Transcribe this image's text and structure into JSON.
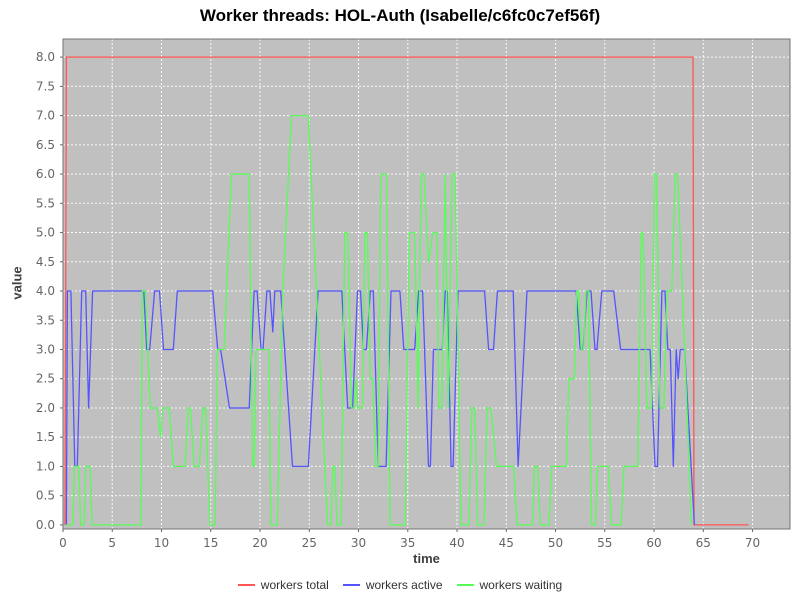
{
  "chart_data": {
    "type": "line",
    "title": "Worker threads: HOL-Auth (Isabelle/c6fc0c7ef56f)",
    "xlabel": "time",
    "ylabel": "value",
    "xlim": [
      0,
      73.8
    ],
    "ylim": [
      -0.07,
      8.31
    ],
    "grid": true,
    "legend_position": "bottom",
    "plot_bg_color": "#c0c0c0",
    "grid_color": "#ffffff",
    "border_color": "#737373",
    "tick_label_color": "#666666",
    "xticks": [
      "0",
      "5",
      "10",
      "15",
      "20",
      "25",
      "30",
      "35",
      "40",
      "45",
      "50",
      "55",
      "60",
      "65",
      "70"
    ],
    "xtick_values": [
      0,
      5,
      10,
      15,
      20,
      25,
      30,
      35,
      40,
      45,
      50,
      55,
      60,
      65,
      70
    ],
    "yticks": [
      "0.0",
      "0.5",
      "1.0",
      "1.5",
      "2.0",
      "2.5",
      "3.0",
      "3.5",
      "4.0",
      "4.5",
      "5.0",
      "5.5",
      "6.0",
      "6.5",
      "7.0",
      "7.5",
      "8.0"
    ],
    "ytick_values": [
      0,
      0.5,
      1,
      1.5,
      2,
      2.5,
      3,
      3.5,
      4,
      4.5,
      5,
      5.5,
      6,
      6.5,
      7,
      7.5,
      8
    ],
    "series": [
      {
        "name": "workers total",
        "color": "#ff5555",
        "points": [
          [
            0.2,
            0
          ],
          [
            0.35,
            8
          ],
          [
            63.95,
            8
          ],
          [
            64.05,
            0
          ],
          [
            69.6,
            0
          ]
        ]
      },
      {
        "name": "workers active",
        "color": "#5555ff",
        "points": [
          [
            0.35,
            0
          ],
          [
            0.45,
            4
          ],
          [
            0.8,
            4
          ],
          [
            1.2,
            1
          ],
          [
            1.45,
            1
          ],
          [
            1.9,
            4
          ],
          [
            2.3,
            4
          ],
          [
            2.6,
            2
          ],
          [
            3.0,
            4
          ],
          [
            8.2,
            4
          ],
          [
            8.5,
            3
          ],
          [
            8.8,
            3
          ],
          [
            9.3,
            4
          ],
          [
            9.8,
            4
          ],
          [
            10.2,
            3
          ],
          [
            11.2,
            3
          ],
          [
            11.6,
            4
          ],
          [
            15.2,
            4
          ],
          [
            15.7,
            3
          ],
          [
            16.0,
            3
          ],
          [
            16.9,
            2
          ],
          [
            18.9,
            2
          ],
          [
            19.4,
            4
          ],
          [
            19.7,
            4
          ],
          [
            20.1,
            3
          ],
          [
            20.3,
            3
          ],
          [
            20.7,
            4
          ],
          [
            21.0,
            4
          ],
          [
            21.3,
            3.3
          ],
          [
            21.5,
            4
          ],
          [
            22.1,
            4
          ],
          [
            23.3,
            1
          ],
          [
            24.9,
            1
          ],
          [
            25.9,
            4
          ],
          [
            28.3,
            4
          ],
          [
            28.9,
            2
          ],
          [
            29.4,
            2
          ],
          [
            29.9,
            4
          ],
          [
            30.2,
            4
          ],
          [
            30.5,
            3
          ],
          [
            30.8,
            3
          ],
          [
            31.2,
            4
          ],
          [
            31.5,
            4
          ],
          [
            32.0,
            1
          ],
          [
            32.8,
            1
          ],
          [
            33.3,
            4
          ],
          [
            34.2,
            4
          ],
          [
            34.6,
            3
          ],
          [
            35.7,
            3
          ],
          [
            36.1,
            4
          ],
          [
            36.5,
            4
          ],
          [
            37.1,
            1
          ],
          [
            37.3,
            1
          ],
          [
            37.6,
            3
          ],
          [
            38.5,
            3
          ],
          [
            38.8,
            4
          ],
          [
            39.0,
            4
          ],
          [
            39.4,
            1
          ],
          [
            39.6,
            1
          ],
          [
            40.1,
            4
          ],
          [
            42.8,
            4
          ],
          [
            43.2,
            3
          ],
          [
            43.7,
            3
          ],
          [
            44.1,
            4
          ],
          [
            45.7,
            4
          ],
          [
            46.2,
            1
          ],
          [
            47.1,
            4
          ],
          [
            52.1,
            4
          ],
          [
            52.5,
            3
          ],
          [
            52.8,
            3
          ],
          [
            53.2,
            4
          ],
          [
            53.6,
            4
          ],
          [
            54.0,
            3
          ],
          [
            54.2,
            3
          ],
          [
            54.7,
            4
          ],
          [
            55.9,
            4
          ],
          [
            56.6,
            3
          ],
          [
            59.6,
            3
          ],
          [
            60.1,
            1
          ],
          [
            60.35,
            1
          ],
          [
            60.8,
            4
          ],
          [
            61.1,
            4
          ],
          [
            61.4,
            3
          ],
          [
            61.65,
            3
          ],
          [
            61.95,
            1
          ],
          [
            62.25,
            3
          ],
          [
            62.45,
            2.5
          ],
          [
            62.65,
            3
          ],
          [
            63.1,
            3
          ],
          [
            64.1,
            0
          ]
        ]
      },
      {
        "name": "workers waiting",
        "color": "#55ff55",
        "points": [
          [
            0.35,
            0
          ],
          [
            1.0,
            0
          ],
          [
            1.15,
            1
          ],
          [
            1.6,
            1
          ],
          [
            1.8,
            0
          ],
          [
            2.15,
            0
          ],
          [
            2.3,
            1
          ],
          [
            2.75,
            1
          ],
          [
            2.95,
            0
          ],
          [
            7.9,
            0
          ],
          [
            8.05,
            4
          ],
          [
            8.35,
            4
          ],
          [
            8.85,
            2
          ],
          [
            9.55,
            2
          ],
          [
            9.9,
            1.5
          ],
          [
            10.15,
            2
          ],
          [
            10.8,
            2
          ],
          [
            11.2,
            1
          ],
          [
            12.4,
            1
          ],
          [
            12.7,
            2
          ],
          [
            12.95,
            2
          ],
          [
            13.3,
            1
          ],
          [
            13.85,
            1
          ],
          [
            14.2,
            2
          ],
          [
            14.5,
            2
          ],
          [
            14.9,
            0
          ],
          [
            15.45,
            0
          ],
          [
            15.65,
            3
          ],
          [
            16.35,
            3
          ],
          [
            17.1,
            6
          ],
          [
            18.9,
            6
          ],
          [
            19.25,
            1
          ],
          [
            19.4,
            1
          ],
          [
            19.6,
            3
          ],
          [
            20.9,
            3
          ],
          [
            21.1,
            0
          ],
          [
            21.75,
            0
          ],
          [
            22.3,
            4
          ],
          [
            23.2,
            7
          ],
          [
            24.9,
            7
          ],
          [
            26.85,
            0
          ],
          [
            27.2,
            0
          ],
          [
            27.4,
            1
          ],
          [
            27.6,
            1
          ],
          [
            27.8,
            0
          ],
          [
            28.25,
            0
          ],
          [
            28.6,
            5
          ],
          [
            28.9,
            5
          ],
          [
            29.3,
            2
          ],
          [
            29.55,
            2
          ],
          [
            29.75,
            2.5
          ],
          [
            29.95,
            2
          ],
          [
            30.4,
            2
          ],
          [
            30.65,
            5
          ],
          [
            30.9,
            5
          ],
          [
            31.2,
            2.5
          ],
          [
            31.45,
            2.5
          ],
          [
            31.75,
            1
          ],
          [
            32.0,
            1
          ],
          [
            32.25,
            6
          ],
          [
            32.85,
            6
          ],
          [
            33.2,
            0
          ],
          [
            34.75,
            0
          ],
          [
            35.15,
            5
          ],
          [
            35.7,
            5
          ],
          [
            36.05,
            2
          ],
          [
            36.35,
            6
          ],
          [
            36.65,
            6
          ],
          [
            37.1,
            4.5
          ],
          [
            37.55,
            5
          ],
          [
            37.95,
            5
          ],
          [
            38.15,
            2
          ],
          [
            38.45,
            2
          ],
          [
            38.8,
            6
          ],
          [
            39.1,
            2
          ],
          [
            39.5,
            6
          ],
          [
            39.8,
            6
          ],
          [
            40.4,
            0
          ],
          [
            41.2,
            0
          ],
          [
            41.5,
            2
          ],
          [
            41.8,
            2
          ],
          [
            42.1,
            0
          ],
          [
            42.75,
            0
          ],
          [
            43.05,
            2
          ],
          [
            43.45,
            2
          ],
          [
            44.0,
            1
          ],
          [
            45.75,
            1
          ],
          [
            46.1,
            0
          ],
          [
            47.65,
            0
          ],
          [
            47.85,
            1
          ],
          [
            48.2,
            1
          ],
          [
            48.45,
            0
          ],
          [
            49.35,
            0
          ],
          [
            49.6,
            1
          ],
          [
            51.1,
            1
          ],
          [
            51.35,
            2.5
          ],
          [
            51.9,
            2.5
          ],
          [
            52.15,
            4
          ],
          [
            52.35,
            4
          ],
          [
            52.6,
            3
          ],
          [
            52.85,
            3
          ],
          [
            53.1,
            4
          ],
          [
            53.35,
            4
          ],
          [
            53.65,
            0
          ],
          [
            54.05,
            0
          ],
          [
            54.25,
            1
          ],
          [
            55.35,
            1
          ],
          [
            55.7,
            0
          ],
          [
            56.65,
            0
          ],
          [
            56.95,
            1
          ],
          [
            58.35,
            1
          ],
          [
            58.7,
            5
          ],
          [
            58.9,
            5
          ],
          [
            59.25,
            2
          ],
          [
            59.75,
            2
          ],
          [
            60.05,
            6
          ],
          [
            60.25,
            6
          ],
          [
            60.6,
            2
          ],
          [
            61.0,
            2
          ],
          [
            61.3,
            4
          ],
          [
            61.8,
            4
          ],
          [
            62.15,
            6
          ],
          [
            62.4,
            6
          ],
          [
            63.8,
            0
          ]
        ]
      }
    ]
  }
}
